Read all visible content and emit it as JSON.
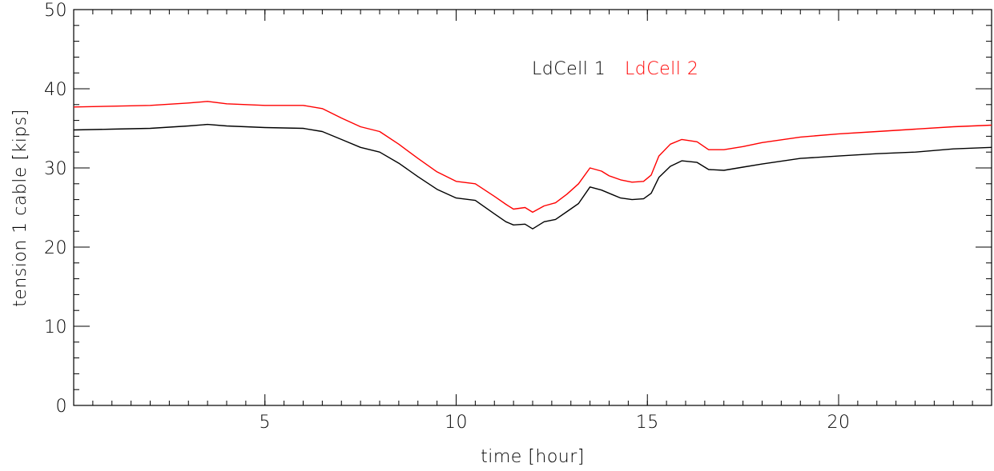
{
  "chart_data": {
    "type": "line",
    "xlabel": "time [hour]",
    "ylabel": "tension 1 cable [kips]",
    "xlim": [
      0,
      24
    ],
    "ylim": [
      0,
      50
    ],
    "x_ticks": [
      5,
      10,
      15,
      20
    ],
    "y_ticks": [
      0,
      10,
      20,
      30,
      40,
      50
    ],
    "x_minor_step": 0.5,
    "y_minor_step": 2,
    "grid": false,
    "legend_position": "top-center",
    "series": [
      {
        "name": "LdCell 1",
        "color": "#000000",
        "points": [
          [
            0,
            34.8
          ],
          [
            1,
            34.9
          ],
          [
            2,
            35.0
          ],
          [
            3,
            35.3
          ],
          [
            3.5,
            35.5
          ],
          [
            4,
            35.3
          ],
          [
            5,
            35.1
          ],
          [
            6,
            35.0
          ],
          [
            6.5,
            34.6
          ],
          [
            7,
            33.6
          ],
          [
            7.5,
            32.6
          ],
          [
            8,
            32.0
          ],
          [
            8.5,
            30.6
          ],
          [
            9,
            28.9
          ],
          [
            9.5,
            27.3
          ],
          [
            10,
            26.2
          ],
          [
            10.5,
            25.9
          ],
          [
            11,
            24.2
          ],
          [
            11.3,
            23.2
          ],
          [
            11.5,
            22.8
          ],
          [
            11.8,
            22.9
          ],
          [
            12,
            22.3
          ],
          [
            12.3,
            23.2
          ],
          [
            12.6,
            23.5
          ],
          [
            12.9,
            24.5
          ],
          [
            13.2,
            25.5
          ],
          [
            13.5,
            27.6
          ],
          [
            13.8,
            27.2
          ],
          [
            14,
            26.8
          ],
          [
            14.3,
            26.2
          ],
          [
            14.6,
            26.0
          ],
          [
            14.9,
            26.1
          ],
          [
            15.1,
            26.8
          ],
          [
            15.3,
            28.8
          ],
          [
            15.6,
            30.2
          ],
          [
            15.9,
            30.9
          ],
          [
            16.3,
            30.7
          ],
          [
            16.6,
            29.8
          ],
          [
            17,
            29.7
          ],
          [
            17.5,
            30.1
          ],
          [
            18,
            30.5
          ],
          [
            19,
            31.2
          ],
          [
            20,
            31.5
          ],
          [
            21,
            31.8
          ],
          [
            22,
            32.0
          ],
          [
            23,
            32.4
          ],
          [
            24,
            32.6
          ]
        ]
      },
      {
        "name": "LdCell 2",
        "color": "#ff0000",
        "points": [
          [
            0,
            37.7
          ],
          [
            1,
            37.8
          ],
          [
            2,
            37.9
          ],
          [
            3,
            38.2
          ],
          [
            3.5,
            38.4
          ],
          [
            4,
            38.1
          ],
          [
            5,
            37.9
          ],
          [
            6,
            37.9
          ],
          [
            6.5,
            37.5
          ],
          [
            7,
            36.3
          ],
          [
            7.5,
            35.2
          ],
          [
            8,
            34.6
          ],
          [
            8.5,
            33.0
          ],
          [
            9,
            31.2
          ],
          [
            9.5,
            29.5
          ],
          [
            10,
            28.3
          ],
          [
            10.5,
            28.0
          ],
          [
            11,
            26.4
          ],
          [
            11.3,
            25.4
          ],
          [
            11.5,
            24.8
          ],
          [
            11.8,
            25.0
          ],
          [
            12,
            24.4
          ],
          [
            12.3,
            25.2
          ],
          [
            12.6,
            25.6
          ],
          [
            12.9,
            26.7
          ],
          [
            13.2,
            28.0
          ],
          [
            13.5,
            30.0
          ],
          [
            13.8,
            29.6
          ],
          [
            14,
            29.0
          ],
          [
            14.3,
            28.5
          ],
          [
            14.6,
            28.2
          ],
          [
            14.9,
            28.3
          ],
          [
            15.1,
            29.1
          ],
          [
            15.3,
            31.5
          ],
          [
            15.6,
            33.0
          ],
          [
            15.9,
            33.6
          ],
          [
            16.3,
            33.3
          ],
          [
            16.6,
            32.3
          ],
          [
            17,
            32.3
          ],
          [
            17.5,
            32.7
          ],
          [
            18,
            33.2
          ],
          [
            19,
            33.9
          ],
          [
            20,
            34.3
          ],
          [
            21,
            34.6
          ],
          [
            22,
            34.9
          ],
          [
            23,
            35.2
          ],
          [
            24,
            35.4
          ]
        ]
      }
    ]
  }
}
